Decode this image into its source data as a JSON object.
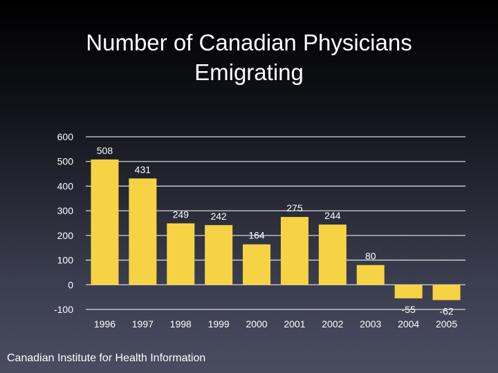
{
  "slide": {
    "title_line1": "Number of Canadian Physicians",
    "title_line2": "Emigrating",
    "source": "Canadian Institute for Health Information"
  },
  "colors": {
    "bar": "#f5d344",
    "grid": "#d8d8d8",
    "text": "#ffffff"
  },
  "chart_data": {
    "type": "bar",
    "title": "Number of Canadian Physicians Emigrating",
    "xlabel": "",
    "ylabel": "",
    "categories": [
      "1996",
      "1997",
      "1998",
      "1999",
      "2000",
      "2001",
      "2002",
      "2003",
      "2004",
      "2005"
    ],
    "values": [
      508,
      431,
      249,
      242,
      164,
      275,
      244,
      80,
      -55,
      -62
    ],
    "ylim": [
      -100,
      600
    ],
    "yticks": [
      600,
      500,
      400,
      300,
      200,
      100,
      0,
      -100
    ],
    "grid": true
  }
}
